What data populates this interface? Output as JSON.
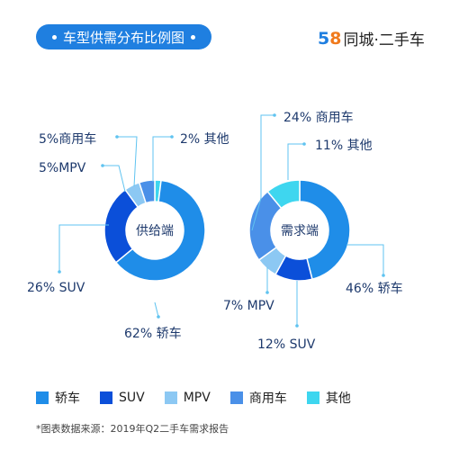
{
  "header": {
    "title": "车型供需分布比例图",
    "logo_number": "58",
    "logo_text": "同城·二手车"
  },
  "colors": {
    "accent": "#1f7fe0",
    "轿车": "#1f8de8",
    "SUV": "#0b4fd9",
    "MPV": "#8cc8f3",
    "商用车": "#4a90e8",
    "其他": "#3ed6ef",
    "leader": "#5fc3f0",
    "label_text": "#1e3a6d"
  },
  "chart_data": [
    {
      "type": "pie",
      "center_label": "供给端",
      "slices": [
        {
          "label": "轿车",
          "value": 62,
          "text": "62% 轿车"
        },
        {
          "label": "SUV",
          "value": 26,
          "text": "26% SUV"
        },
        {
          "label": "MPV",
          "value": 5,
          "text": "5%MPV"
        },
        {
          "label": "商用车",
          "value": 5,
          "text": "5%商用车"
        },
        {
          "label": "其他",
          "value": 2,
          "text": "2% 其他"
        }
      ]
    },
    {
      "type": "pie",
      "center_label": "需求端",
      "slices": [
        {
          "label": "轿车",
          "value": 46,
          "text": "46% 轿车"
        },
        {
          "label": "SUV",
          "value": 12,
          "text": "12% SUV"
        },
        {
          "label": "MPV",
          "value": 7,
          "text": "7% MPV"
        },
        {
          "label": "商用车",
          "value": 24,
          "text": "24% 商用车"
        },
        {
          "label": "其他",
          "value": 11,
          "text": "11% 其他"
        }
      ]
    }
  ],
  "legend": [
    {
      "label": "轿车",
      "color": "#1f8de8"
    },
    {
      "label": "SUV",
      "color": "#0b4fd9"
    },
    {
      "label": "MPV",
      "color": "#8cc8f3"
    },
    {
      "label": "商用车",
      "color": "#4a90e8"
    },
    {
      "label": "其他",
      "color": "#3ed6ef"
    }
  ],
  "footnote": "*图表数据来源：2019年Q2二手车需求报告"
}
